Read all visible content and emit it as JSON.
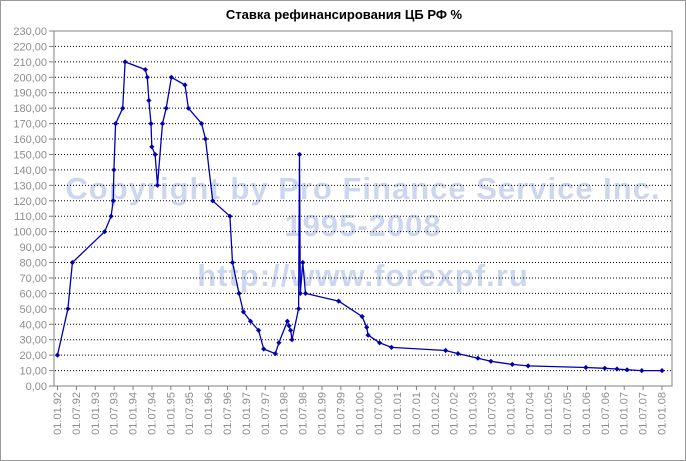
{
  "title": "Ставка рефинансирования ЦБ РФ %",
  "watermark": {
    "line1": "Copyright by Pro Finance Service Inc.",
    "line2": "1995-2008",
    "line3": "http://www.forexpf.ru",
    "color": "#ccd6ee"
  },
  "colors": {
    "series": "#0000b4",
    "grid": "#000000",
    "axis": "#808080",
    "tick_label": "#8e8e8e",
    "background": "#ffffff"
  },
  "chart_data": {
    "type": "line",
    "title": "Ставка рефинансирования ЦБ РФ %",
    "xlabel": "",
    "ylabel": "",
    "ylim": [
      0,
      230
    ],
    "y_tick_step": 10,
    "y_tick_format": "0,00",
    "grid": "horizontal-dotted",
    "legend": "none",
    "marker": "diamond",
    "x_tick_labels": [
      "01.01.92",
      "01.07.92",
      "01.01.93",
      "01.07.93",
      "01.01.94",
      "01.07.94",
      "01.01.95",
      "01.07.95",
      "01.01.96",
      "01.07.96",
      "01.01.97",
      "01.07.97",
      "01.01.98",
      "01.07.98",
      "01.01.99",
      "01.07.99",
      "01.01.00",
      "01.07.00",
      "01.01.01",
      "01.07.01",
      "01.01.02",
      "01.07.02",
      "01.01.03",
      "01.07.03",
      "01.01.04",
      "01.07.04",
      "01.01.05",
      "01.07.05",
      "01.01.06",
      "01.07.06",
      "01.01.07",
      "01.07.07",
      "01.01.08"
    ],
    "series": [
      {
        "name": "Ставка рефинансирования ЦБ РФ %",
        "points": [
          [
            "01.01.92",
            20
          ],
          [
            "10.04.92",
            50
          ],
          [
            "23.05.92",
            80
          ],
          [
            "30.03.93",
            100
          ],
          [
            "02.06.93",
            110
          ],
          [
            "22.06.93",
            120
          ],
          [
            "29.06.93",
            140
          ],
          [
            "15.07.93",
            170
          ],
          [
            "23.09.93",
            180
          ],
          [
            "15.10.93",
            210
          ],
          [
            "29.04.94",
            205
          ],
          [
            "17.05.94",
            200
          ],
          [
            "02.06.94",
            185
          ],
          [
            "22.06.94",
            170
          ],
          [
            "30.06.94",
            155
          ],
          [
            "01.08.94",
            150
          ],
          [
            "24.08.94",
            130
          ],
          [
            "12.10.94",
            170
          ],
          [
            "17.11.94",
            180
          ],
          [
            "06.01.95",
            200
          ],
          [
            "16.05.95",
            195
          ],
          [
            "19.06.95",
            180
          ],
          [
            "24.10.95",
            170
          ],
          [
            "01.12.95",
            160
          ],
          [
            "10.02.96",
            120
          ],
          [
            "24.07.96",
            110
          ],
          [
            "19.08.96",
            80
          ],
          [
            "21.10.96",
            60
          ],
          [
            "02.12.96",
            48
          ],
          [
            "10.02.97",
            42
          ],
          [
            "28.04.97",
            36
          ],
          [
            "16.06.97",
            24
          ],
          [
            "06.10.97",
            21
          ],
          [
            "11.11.97",
            28
          ],
          [
            "02.02.98",
            42
          ],
          [
            "17.02.98",
            39
          ],
          [
            "02.03.98",
            36
          ],
          [
            "16.03.98",
            30
          ],
          [
            "19.05.98",
            50
          ],
          [
            "27.05.98",
            150
          ],
          [
            "05.06.98",
            60
          ],
          [
            "29.06.98",
            80
          ],
          [
            "24.07.98",
            60
          ],
          [
            "10.06.99",
            55
          ],
          [
            "24.01.00",
            45
          ],
          [
            "07.03.00",
            38
          ],
          [
            "21.03.00",
            33
          ],
          [
            "10.07.00",
            28
          ],
          [
            "04.11.00",
            25
          ],
          [
            "09.04.02",
            23
          ],
          [
            "07.08.02",
            21
          ],
          [
            "17.02.03",
            18
          ],
          [
            "21.06.03",
            16
          ],
          [
            "15.01.04",
            14
          ],
          [
            "15.06.04",
            13
          ],
          [
            "26.12.05",
            12
          ],
          [
            "26.06.06",
            11.5
          ],
          [
            "23.10.06",
            11
          ],
          [
            "29.01.07",
            10.5
          ],
          [
            "19.06.07",
            10
          ],
          [
            "01.01.08",
            10
          ]
        ]
      }
    ]
  }
}
